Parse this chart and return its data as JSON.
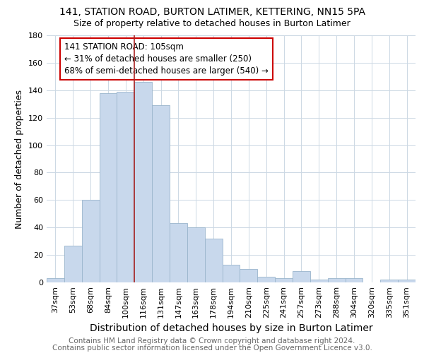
{
  "title": "141, STATION ROAD, BURTON LATIMER, KETTERING, NN15 5PA",
  "subtitle": "Size of property relative to detached houses in Burton Latimer",
  "xlabel": "Distribution of detached houses by size in Burton Latimer",
  "ylabel": "Number of detached properties",
  "categories": [
    "37sqm",
    "53sqm",
    "68sqm",
    "84sqm",
    "100sqm",
    "116sqm",
    "131sqm",
    "147sqm",
    "163sqm",
    "178sqm",
    "194sqm",
    "210sqm",
    "225sqm",
    "241sqm",
    "257sqm",
    "273sqm",
    "288sqm",
    "304sqm",
    "320sqm",
    "335sqm",
    "351sqm"
  ],
  "values": [
    3,
    27,
    60,
    138,
    139,
    146,
    129,
    43,
    40,
    32,
    13,
    10,
    4,
    3,
    8,
    2,
    3,
    3,
    0,
    2,
    2
  ],
  "bar_color": "#c8d8ec",
  "bar_edge_color": "#9ab5cc",
  "vline_x_index": 4.5,
  "vline_color": "#aa2222",
  "annotation_line1": "141 STATION ROAD: 105sqm",
  "annotation_line2": "← 31% of detached houses are smaller (250)",
  "annotation_line3": "68% of semi-detached houses are larger (540) →",
  "annotation_box_color": "#ffffff",
  "annotation_box_edge_color": "#cc0000",
  "ylim": [
    0,
    180
  ],
  "yticks": [
    0,
    20,
    40,
    60,
    80,
    100,
    120,
    140,
    160,
    180
  ],
  "footnote1": "Contains HM Land Registry data © Crown copyright and database right 2024.",
  "footnote2": "Contains public sector information licensed under the Open Government Licence v3.0.",
  "title_fontsize": 10,
  "subtitle_fontsize": 9,
  "xlabel_fontsize": 10,
  "ylabel_fontsize": 9,
  "tick_fontsize": 8,
  "annotation_fontsize": 8.5,
  "footnote_fontsize": 7.5,
  "background_color": "#ffffff",
  "grid_color": "#ccd8e4"
}
